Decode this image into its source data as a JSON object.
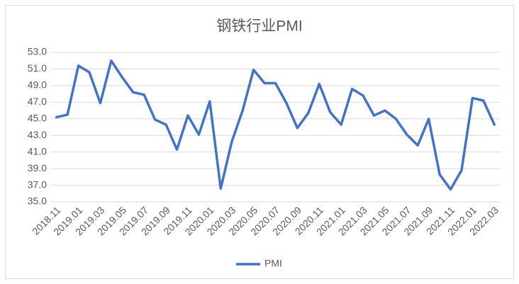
{
  "chart_data": {
    "type": "line",
    "title": "钢铁行业PMI",
    "categories": [
      "2018.11",
      null,
      "2019.01",
      null,
      "2019.03",
      null,
      "2019.05",
      null,
      "2019.07",
      null,
      "2019.09",
      null,
      "2019.11",
      null,
      "2020.01",
      null,
      "2020.03",
      null,
      "2020.05",
      null,
      "2020.07",
      null,
      "2020.09",
      null,
      "2020.11",
      null,
      "2021.01",
      null,
      "2021.03",
      null,
      "2021.05",
      null,
      "2021.07",
      null,
      "2021.09",
      null,
      "2021.11",
      null,
      "2022.01",
      null,
      "2022.03"
    ],
    "series": [
      {
        "name": "PMI",
        "color": "#4472c4",
        "values": [
          45.2,
          45.5,
          51.4,
          50.6,
          46.9,
          52.0,
          50.0,
          48.2,
          47.9,
          44.9,
          44.3,
          41.3,
          45.4,
          43.1,
          47.1,
          36.6,
          42.2,
          46.0,
          50.9,
          49.3,
          49.3,
          46.9,
          43.9,
          45.7,
          49.2,
          45.8,
          44.3,
          48.6,
          47.8,
          45.4,
          46.0,
          45.0,
          43.1,
          41.8,
          45.0,
          38.3,
          36.5,
          38.8,
          47.5,
          47.2,
          44.3
        ]
      }
    ],
    "ylim": [
      35,
      53
    ],
    "yticks": [
      {
        "value": 35,
        "label": "35.0"
      },
      {
        "value": 37,
        "label": "37.0"
      },
      {
        "value": 39,
        "label": "39.0"
      },
      {
        "value": 41,
        "label": "41.0"
      },
      {
        "value": 43,
        "label": "43.0"
      },
      {
        "value": 45,
        "label": "45.0"
      },
      {
        "value": 47,
        "label": "47.0"
      },
      {
        "value": 49,
        "label": "49.0"
      },
      {
        "value": 51,
        "label": "51.0"
      },
      {
        "value": 53,
        "label": "53.0"
      }
    ],
    "grid": true,
    "legend": "bottom"
  }
}
